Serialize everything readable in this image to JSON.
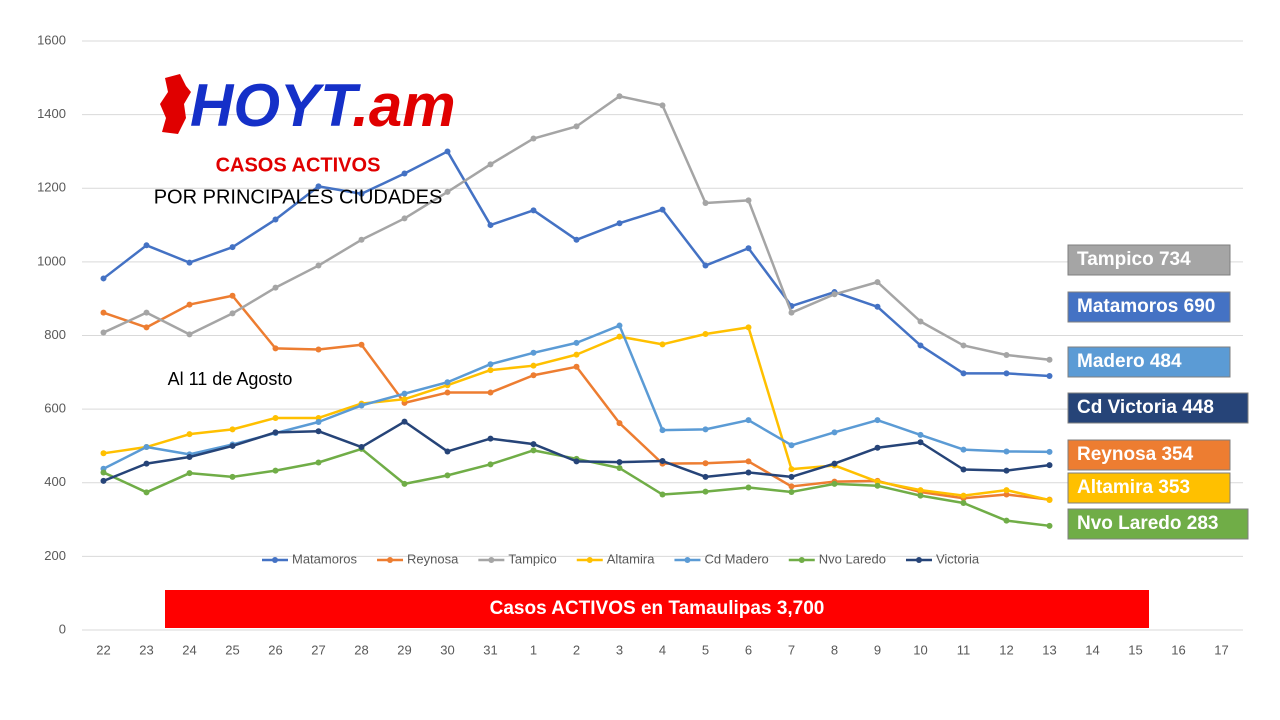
{
  "chart_data": {
    "type": "line",
    "logo": {
      "main": "HOYT",
      "suffix": ".am"
    },
    "title": "CASOS ACTIVOS",
    "subtitle": "POR PRINCIPALES CIUDADES",
    "date_note": "Al 11 de Agosto",
    "banner": "Casos ACTIVOS en Tamaulipas 3,700",
    "categories": [
      "22",
      "23",
      "24",
      "25",
      "26",
      "27",
      "28",
      "29",
      "30",
      "31",
      "1",
      "2",
      "3",
      "4",
      "5",
      "6",
      "7",
      "8",
      "9",
      "10",
      "11",
      "12",
      "13",
      "14",
      "15",
      "16",
      "17"
    ],
    "ylim": [
      0,
      1600
    ],
    "yticks": [
      0,
      200,
      400,
      600,
      800,
      1000,
      1200,
      1400,
      1600
    ],
    "grid": true,
    "legend": "bottom",
    "series": [
      {
        "name": "Matamoros",
        "color": "#4472c4",
        "values": [
          955,
          1045,
          998,
          1040,
          1115,
          1205,
          1185,
          1240,
          1300,
          1100,
          1140,
          1060,
          1105,
          1142,
          990,
          1037,
          880,
          918,
          878,
          773,
          697,
          697,
          690,
          null,
          null,
          null,
          null
        ]
      },
      {
        "name": "Reynosa",
        "color": "#ed7d31",
        "values": [
          862,
          822,
          884,
          908,
          765,
          762,
          775,
          617,
          645,
          645,
          692,
          715,
          562,
          452,
          453,
          458,
          390,
          403,
          405,
          375,
          358,
          368,
          354,
          null,
          null,
          null,
          null
        ]
      },
      {
        "name": "Tampico",
        "color": "#a5a5a5",
        "values": [
          808,
          862,
          803,
          860,
          930,
          990,
          1060,
          1118,
          1190,
          1265,
          1335,
          1368,
          1450,
          1425,
          1160,
          1167,
          862,
          912,
          945,
          838,
          773,
          747,
          734,
          null,
          null,
          null,
          null
        ]
      },
      {
        "name": "Altamira",
        "color": "#ffc000",
        "values": [
          480,
          497,
          532,
          545,
          576,
          576,
          615,
          627,
          665,
          706,
          718,
          748,
          797,
          776,
          804,
          822,
          437,
          447,
          403,
          380,
          365,
          380,
          353,
          null,
          null,
          null,
          null
        ]
      },
      {
        "name": "Cd Madero",
        "color": "#5b9bd5",
        "values": [
          438,
          497,
          477,
          504,
          535,
          565,
          610,
          642,
          673,
          722,
          753,
          780,
          827,
          543,
          545,
          570,
          502,
          537,
          570,
          530,
          490,
          485,
          484,
          null,
          null,
          null,
          null
        ]
      },
      {
        "name": "Nvo Laredo",
        "color": "#70ad47",
        "values": [
          428,
          374,
          426,
          416,
          433,
          455,
          492,
          397,
          420,
          450,
          488,
          465,
          440,
          368,
          376,
          387,
          375,
          397,
          392,
          365,
          345,
          297,
          283,
          null,
          null,
          null,
          null
        ]
      },
      {
        "name": "Victoria",
        "color": "#264478",
        "values": [
          405,
          452,
          470,
          500,
          537,
          540,
          497,
          566,
          485,
          520,
          505,
          458,
          456,
          459,
          416,
          428,
          416,
          452,
          495,
          510,
          436,
          433,
          448,
          null,
          null,
          null,
          null
        ]
      }
    ],
    "annotations": [
      {
        "text": "Tampico 734",
        "color": "#a5a5a5"
      },
      {
        "text": "Matamoros 690",
        "color": "#4472c4"
      },
      {
        "text": "Madero 484",
        "color": "#5b9bd5"
      },
      {
        "text": "Cd Victoria 448",
        "color": "#264478"
      },
      {
        "text": "Reynosa 354",
        "color": "#ed7d31"
      },
      {
        "text": "Altamira 353",
        "color": "#ffc000"
      },
      {
        "text": "Nvo Laredo 283",
        "color": "#70ad47"
      }
    ]
  }
}
